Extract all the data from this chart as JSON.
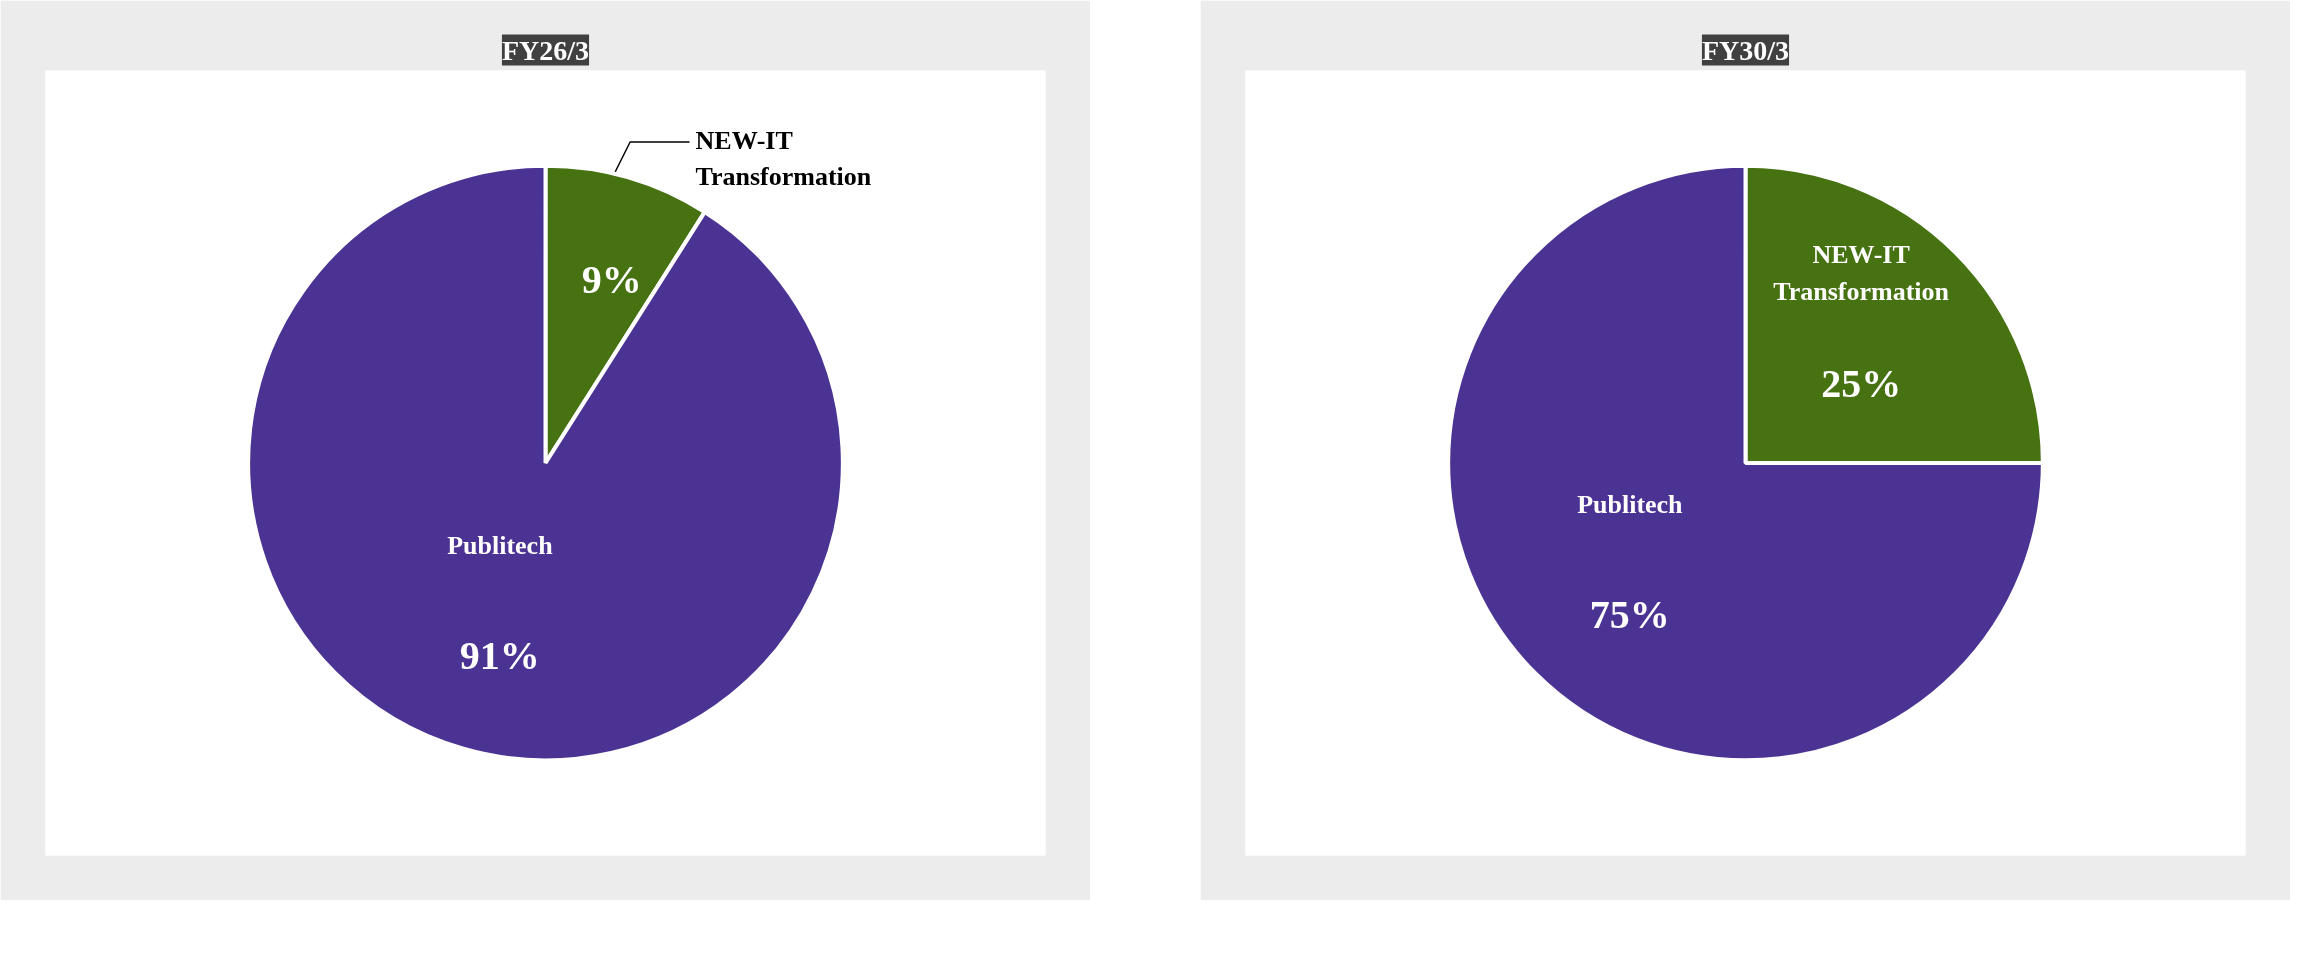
{
  "chart_data": [
    {
      "type": "pie",
      "title": "FY26/3",
      "categories": [
        "NEW-IT Transformation",
        "Publitech"
      ],
      "values": [
        9,
        91
      ],
      "value_labels": [
        "9%",
        "91%"
      ],
      "colors": [
        "#467212",
        "#4b3394"
      ]
    },
    {
      "type": "pie",
      "title": "FY30/3",
      "categories": [
        "NEW-IT Transformation",
        "Publitech"
      ],
      "values": [
        25,
        75
      ],
      "value_labels": [
        "25%",
        "75%"
      ],
      "colors": [
        "#467212",
        "#4b3394"
      ]
    }
  ]
}
